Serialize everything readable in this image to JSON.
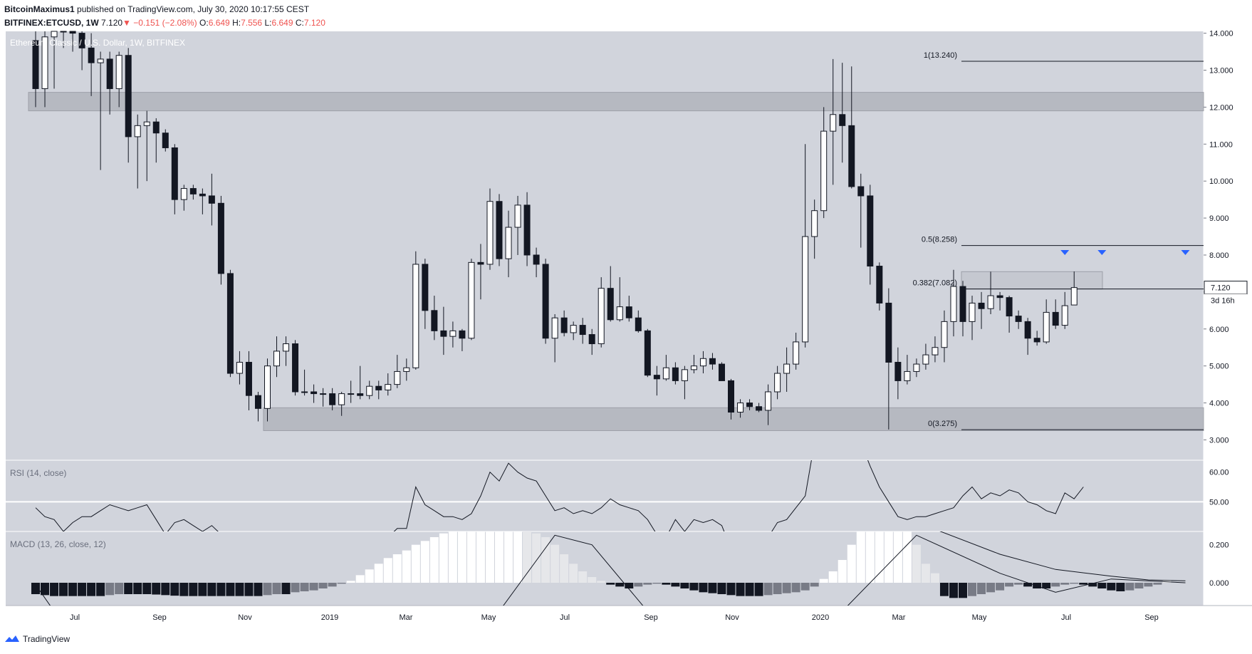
{
  "header": {
    "line1": {
      "author": "BitcoinMaximus1",
      "text": " published on TradingView.com, July 30, 2020 10:17:55 CEST"
    },
    "line2": {
      "symbol": "BITFINEX:ETCUSD, 1W",
      "last": "7.120",
      "change": "−0.151 (−2.08%)",
      "o_label": "O:",
      "o": "6.649",
      "h_label": "H:",
      "h": "7.556",
      "l_label": "L:",
      "l": "6.649",
      "c_label": "C:",
      "c": "7.120"
    }
  },
  "footer": {
    "brand": "TradingView"
  },
  "chart_data": {
    "type": "candlestick",
    "title": "Ethereum Classic / U.S. Dollar, 1W, BITFINEX",
    "price_axis": {
      "ticks": [
        "3.000",
        "4.000",
        "5.000",
        "6.000",
        "7.000",
        "8.000",
        "9.000",
        "10.000",
        "11.000",
        "12.000",
        "13.000",
        "14.000"
      ],
      "range": [
        2.45,
        14.05
      ]
    },
    "last_price_label": "7.120",
    "countdown_label": "3d 16h",
    "time_axis": [
      "Jul",
      "Sep",
      "Nov",
      "2019",
      "Mar",
      "May",
      "Jul",
      "Sep",
      "Nov",
      "2020",
      "Mar",
      "May",
      "Jul",
      "Sep"
    ],
    "zones": [
      {
        "name": "resistance",
        "from": 11.9,
        "to": 12.4
      },
      {
        "name": "support",
        "from": 3.25,
        "to": 3.87
      },
      {
        "name": "range-top",
        "from": 7.08,
        "to": 7.55
      }
    ],
    "fib_levels": [
      {
        "label": "1(13.240)",
        "value": 13.24
      },
      {
        "label": "0.5(8.258)",
        "value": 8.258
      },
      {
        "label": "0.382(7.082)",
        "value": 7.082
      },
      {
        "label": "0(3.275)",
        "value": 3.275
      }
    ],
    "markers": [
      {
        "week": 111
      },
      {
        "week": 115
      },
      {
        "week": 124
      }
    ],
    "candles": [
      [
        13.8,
        14.8,
        12.0,
        12.5
      ],
      [
        12.5,
        14.5,
        12.0,
        13.9
      ],
      [
        13.9,
        14.6,
        12.5,
        14.2
      ],
      [
        14.2,
        14.8,
        13.6,
        14.4
      ],
      [
        14.4,
        14.8,
        13.5,
        14.0
      ],
      [
        14.0,
        14.5,
        13.0,
        13.6
      ],
      [
        13.6,
        14.0,
        12.3,
        13.2
      ],
      [
        13.2,
        13.5,
        10.3,
        13.3
      ],
      [
        13.3,
        13.5,
        11.8,
        12.5
      ],
      [
        12.5,
        13.5,
        12.0,
        13.4
      ],
      [
        13.4,
        13.6,
        10.5,
        11.2
      ],
      [
        11.2,
        11.8,
        9.8,
        11.5
      ],
      [
        11.5,
        11.9,
        10.0,
        11.6
      ],
      [
        11.6,
        11.7,
        10.5,
        11.3
      ],
      [
        11.3,
        11.4,
        10.8,
        10.9
      ],
      [
        10.9,
        11.0,
        9.1,
        9.5
      ],
      [
        9.5,
        9.9,
        9.2,
        9.8
      ],
      [
        9.8,
        9.9,
        9.5,
        9.65
      ],
      [
        9.65,
        9.8,
        9.1,
        9.6
      ],
      [
        9.6,
        10.2,
        8.8,
        9.4
      ],
      [
        9.4,
        9.6,
        7.2,
        7.5
      ],
      [
        7.5,
        7.6,
        4.7,
        4.8
      ],
      [
        4.8,
        5.4,
        4.5,
        5.1
      ],
      [
        5.1,
        5.4,
        3.8,
        4.2
      ],
      [
        4.2,
        4.3,
        3.5,
        3.85
      ],
      [
        3.85,
        5.2,
        3.5,
        5.0
      ],
      [
        5.0,
        5.8,
        4.7,
        5.4
      ],
      [
        5.4,
        5.8,
        5.0,
        5.6
      ],
      [
        5.6,
        5.7,
        4.2,
        4.3
      ],
      [
        4.3,
        4.9,
        4.2,
        4.3
      ],
      [
        4.3,
        4.5,
        4.0,
        4.25
      ],
      [
        4.25,
        4.4,
        3.9,
        4.25
      ],
      [
        4.25,
        4.4,
        3.8,
        3.95
      ],
      [
        3.95,
        4.3,
        3.65,
        4.25
      ],
      [
        4.25,
        4.6,
        4.0,
        4.25
      ],
      [
        4.25,
        5.0,
        4.1,
        4.2
      ],
      [
        4.2,
        4.6,
        4.1,
        4.45
      ],
      [
        4.45,
        4.6,
        4.1,
        4.35
      ],
      [
        4.35,
        4.8,
        4.2,
        4.5
      ],
      [
        4.5,
        5.3,
        4.4,
        4.85
      ],
      [
        4.85,
        5.2,
        4.6,
        4.95
      ],
      [
        4.95,
        8.1,
        4.9,
        7.75
      ],
      [
        7.75,
        7.9,
        6.0,
        6.5
      ],
      [
        6.5,
        6.9,
        5.7,
        5.95
      ],
      [
        5.95,
        6.6,
        5.3,
        5.8
      ],
      [
        5.8,
        6.2,
        5.5,
        5.95
      ],
      [
        5.95,
        6.0,
        5.4,
        5.75
      ],
      [
        5.75,
        7.9,
        5.7,
        7.8
      ],
      [
        7.8,
        8.3,
        6.8,
        7.75
      ],
      [
        7.75,
        9.8,
        7.6,
        9.45
      ],
      [
        9.45,
        9.65,
        7.7,
        7.9
      ],
      [
        7.9,
        9.2,
        7.4,
        8.75
      ],
      [
        8.75,
        9.6,
        8.0,
        9.35
      ],
      [
        9.35,
        9.7,
        7.7,
        8.0
      ],
      [
        8.0,
        8.2,
        7.4,
        7.75
      ],
      [
        7.75,
        7.9,
        5.6,
        5.75
      ],
      [
        5.75,
        6.4,
        5.1,
        6.3
      ],
      [
        6.3,
        6.5,
        5.8,
        5.9
      ],
      [
        5.9,
        6.2,
        5.7,
        6.1
      ],
      [
        6.1,
        6.3,
        5.6,
        5.85
      ],
      [
        5.85,
        6.0,
        5.3,
        5.6
      ],
      [
        5.6,
        7.4,
        5.5,
        7.1
      ],
      [
        7.1,
        7.7,
        6.2,
        6.25
      ],
      [
        6.25,
        7.4,
        6.2,
        6.6
      ],
      [
        6.6,
        6.9,
        6.2,
        6.3
      ],
      [
        6.3,
        6.5,
        5.9,
        5.95
      ],
      [
        5.95,
        6.0,
        4.7,
        4.75
      ],
      [
        4.75,
        5.0,
        4.2,
        4.65
      ],
      [
        4.65,
        5.3,
        4.6,
        4.95
      ],
      [
        4.95,
        5.1,
        4.5,
        4.6
      ],
      [
        4.6,
        5.0,
        4.1,
        4.9
      ],
      [
        4.9,
        5.3,
        4.8,
        5.0
      ],
      [
        5.0,
        5.4,
        4.8,
        5.2
      ],
      [
        5.2,
        5.35,
        4.9,
        5.05
      ],
      [
        5.05,
        5.1,
        4.6,
        4.6
      ],
      [
        4.6,
        4.65,
        3.55,
        3.75
      ],
      [
        3.75,
        4.1,
        3.6,
        4.0
      ],
      [
        4.0,
        4.1,
        3.8,
        3.9
      ],
      [
        3.9,
        4.0,
        3.75,
        3.8
      ],
      [
        3.8,
        4.5,
        3.4,
        4.3
      ],
      [
        4.3,
        5.0,
        4.1,
        4.8
      ],
      [
        4.8,
        5.5,
        4.3,
        5.05
      ],
      [
        5.05,
        5.9,
        4.9,
        5.65
      ],
      [
        5.65,
        11.0,
        5.5,
        8.5
      ],
      [
        8.5,
        9.5,
        7.9,
        9.2
      ],
      [
        9.2,
        12.0,
        9.0,
        11.35
      ],
      [
        11.35,
        13.3,
        9.9,
        11.8
      ],
      [
        11.8,
        13.2,
        10.5,
        11.5
      ],
      [
        11.5,
        13.1,
        9.8,
        9.85
      ],
      [
        9.85,
        10.2,
        8.2,
        9.6
      ],
      [
        9.6,
        9.9,
        7.2,
        7.7
      ],
      [
        7.7,
        7.8,
        6.5,
        6.7
      ],
      [
        6.7,
        7.1,
        3.28,
        5.1
      ],
      [
        5.1,
        5.5,
        4.1,
        4.6
      ],
      [
        4.6,
        5.3,
        4.5,
        4.85
      ],
      [
        4.85,
        5.2,
        4.7,
        5.05
      ],
      [
        5.05,
        5.6,
        4.9,
        5.3
      ],
      [
        5.3,
        5.8,
        5.1,
        5.5
      ],
      [
        5.5,
        6.5,
        5.1,
        6.2
      ],
      [
        6.2,
        7.6,
        5.8,
        7.15
      ],
      [
        7.15,
        7.3,
        5.8,
        6.2
      ],
      [
        6.2,
        6.9,
        5.7,
        6.7
      ],
      [
        6.7,
        7.0,
        6.0,
        6.55
      ],
      [
        6.55,
        7.55,
        6.4,
        6.9
      ],
      [
        6.9,
        7.0,
        6.5,
        6.85
      ],
      [
        6.85,
        6.9,
        5.9,
        6.35
      ],
      [
        6.35,
        6.5,
        6.0,
        6.2
      ],
      [
        6.2,
        6.3,
        5.3,
        5.75
      ],
      [
        5.75,
        5.95,
        5.55,
        5.65
      ],
      [
        5.65,
        6.8,
        5.6,
        6.45
      ],
      [
        6.45,
        6.8,
        6.0,
        6.1
      ],
      [
        6.1,
        7.0,
        6.0,
        6.63
      ],
      [
        6.649,
        7.556,
        6.649,
        7.12
      ]
    ],
    "rsi": {
      "label": "RSI (14, close)",
      "ticks": [
        "50.00",
        "60.00"
      ],
      "level": 50,
      "values": [
        48,
        45,
        44,
        40,
        43,
        45,
        45,
        47,
        49,
        48,
        47,
        48,
        49,
        44,
        39,
        43,
        44,
        42,
        40,
        42,
        39,
        30,
        28,
        30,
        31,
        36,
        38,
        38,
        36,
        36,
        36,
        36,
        36,
        38,
        38,
        38,
        39,
        38,
        38,
        41,
        41,
        55,
        49,
        47,
        45,
        45,
        44,
        46,
        52,
        60,
        57,
        63,
        60,
        58,
        57,
        52,
        47,
        48,
        46,
        47,
        46,
        48,
        51,
        49,
        48,
        47,
        44,
        39,
        38,
        44,
        40,
        44,
        43,
        44,
        42,
        34,
        36,
        36,
        36,
        38,
        43,
        44,
        48,
        52,
        70,
        68,
        72,
        76,
        72,
        70,
        62,
        55,
        50,
        45,
        44,
        45,
        45,
        46,
        47,
        48,
        52,
        55,
        51,
        53,
        52,
        54,
        53,
        50,
        49,
        47,
        46,
        53,
        51,
        55
      ],
      "range": [
        40,
        64
      ]
    },
    "macd": {
      "label": "MACD (13, 26, close, 12)",
      "ticks": [
        "0.000",
        "0.200"
      ],
      "range": [
        -0.12,
        0.27
      ],
      "histogram": [
        -0.06,
        -0.065,
        -0.07,
        -0.07,
        -0.07,
        -0.07,
        -0.07,
        -0.07,
        -0.065,
        -0.06,
        -0.06,
        -0.06,
        -0.06,
        -0.062,
        -0.065,
        -0.068,
        -0.07,
        -0.07,
        -0.07,
        -0.07,
        -0.07,
        -0.07,
        -0.07,
        -0.07,
        -0.07,
        -0.065,
        -0.06,
        -0.06,
        -0.05,
        -0.045,
        -0.04,
        -0.03,
        -0.02,
        -0.005,
        0.01,
        0.04,
        0.07,
        0.1,
        0.13,
        0.15,
        0.17,
        0.2,
        0.22,
        0.24,
        0.26,
        0.28,
        0.3,
        0.3,
        0.3,
        0.3,
        0.3,
        0.3,
        0.3,
        0.28,
        0.26,
        0.24,
        0.2,
        0.15,
        0.1,
        0.06,
        0.03,
        0.01,
        -0.01,
        -0.02,
        -0.03,
        -0.02,
        -0.01,
        -0.005,
        -0.01,
        -0.02,
        -0.03,
        -0.04,
        -0.05,
        -0.055,
        -0.06,
        -0.065,
        -0.07,
        -0.07,
        -0.07,
        -0.065,
        -0.06,
        -0.055,
        -0.05,
        -0.04,
        -0.02,
        0.02,
        0.06,
        0.12,
        0.2,
        0.28,
        0.3,
        0.3,
        0.3,
        0.3,
        0.3,
        0.2,
        0.1,
        0.05,
        -0.07,
        -0.08,
        -0.08,
        -0.07,
        -0.06,
        -0.05,
        -0.04,
        -0.02,
        -0.01,
        -0.02,
        -0.03,
        -0.03,
        -0.02,
        -0.01,
        -0.005,
        -0.01,
        -0.02,
        -0.03,
        -0.04,
        -0.045,
        -0.04,
        -0.03,
        -0.02,
        -0.01,
        0.015
      ],
      "macd_line_weeks": [
        [
          0,
          -0.01
        ],
        [
          2,
          -0.15
        ],
        [
          50,
          -0.15
        ],
        [
          56,
          0.25
        ],
        [
          60,
          0.2
        ],
        [
          66,
          -0.15
        ],
        [
          87,
          -0.15
        ],
        [
          95,
          0.25
        ],
        [
          104,
          0.05
        ],
        [
          110,
          -0.05
        ],
        [
          116,
          0.02
        ],
        [
          124,
          0.0
        ]
      ],
      "signal_line_weeks": [
        [
          96,
          0.3
        ],
        [
          104,
          0.15
        ],
        [
          110,
          0.07
        ],
        [
          116,
          0.035
        ],
        [
          120,
          0.015
        ],
        [
          124,
          0.01
        ]
      ]
    }
  }
}
